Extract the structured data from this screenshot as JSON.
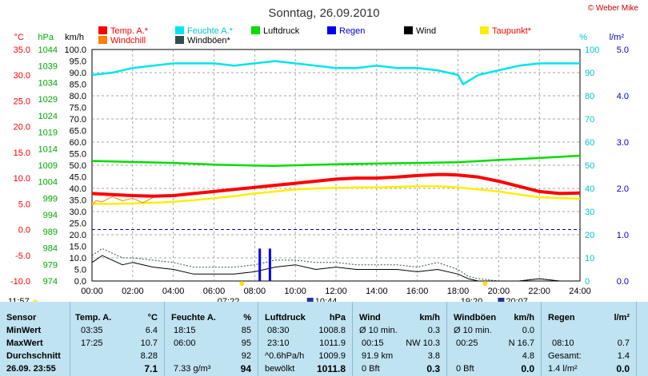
{
  "header": {
    "title": "Sonntag, 26.09.2010",
    "credit": "© Weber Mike"
  },
  "colors": {
    "temp": "#ff0000",
    "feuchte": "#00e5ee",
    "luftdruck": "#00dd00",
    "regen": "#0000ee",
    "wind": "#000000",
    "taupunkt": "#ffee00",
    "windchill": "#ff7f00",
    "windboeen": "#2f4f4f"
  },
  "chart_data": {
    "type": "line",
    "title": "Sonntag, 26.09.2010",
    "x_range": [
      "00:00",
      "24:00"
    ],
    "x_ticks": [
      "00:00",
      "02:00",
      "04:00",
      "06:00",
      "08:00",
      "10:00",
      "12:00",
      "14:00",
      "16:00",
      "18:00",
      "20:00",
      "22:00",
      "24:00"
    ],
    "axes": {
      "temp": {
        "label": "°C",
        "range": [
          -10,
          35
        ],
        "ticks": [
          "35.0",
          "30.0",
          "25.0",
          "20.0",
          "15.0",
          "10.0",
          "5.0",
          "0.0",
          "-5.0",
          "-10.0"
        ]
      },
      "hpa": {
        "label": "hPa",
        "range": [
          974,
          1044
        ],
        "ticks": [
          "1044",
          "1039",
          "1034",
          "1029",
          "1024",
          "1019",
          "1014",
          "1009",
          "1004",
          "999",
          "994",
          "989",
          "984",
          "979",
          "974"
        ]
      },
      "kmh": {
        "label": "km/h",
        "range": [
          0,
          100
        ],
        "ticks": [
          "100.0",
          "95.0",
          "90.0",
          "85.0",
          "80.0",
          "75.0",
          "70.0",
          "65.0",
          "60.0",
          "55.0",
          "50.0",
          "45.0",
          "40.0",
          "35.0",
          "30.0",
          "25.0",
          "20.0",
          "15.0",
          "10.0",
          "5.0",
          "0.0"
        ]
      },
      "pct": {
        "label": "%",
        "range": [
          0,
          100
        ],
        "ticks": [
          "100",
          "90",
          "80",
          "70",
          "60",
          "50",
          "40",
          "30",
          "20",
          "10",
          "0"
        ]
      },
      "rain": {
        "label": "l/m²",
        "range": [
          0,
          5
        ],
        "ticks": [
          "5.0",
          "4.0",
          "3.0",
          "2.0",
          "1.0",
          "0.0"
        ]
      }
    },
    "legend": [
      "Temp. A.*",
      "Feuchte A.*",
      "Luftdruck",
      "Regen",
      "Wind",
      "Taupunkt*",
      "Windchill",
      "Windböen*"
    ],
    "series": [
      {
        "name": "Temp. A.*",
        "axis": "temp",
        "x": [
          0,
          1,
          2,
          3,
          4,
          5,
          6,
          7,
          8,
          9,
          10,
          11,
          12,
          13,
          14,
          15,
          16,
          17,
          17.4,
          18,
          19,
          20,
          21,
          22,
          23,
          24
        ],
        "y": [
          7.0,
          6.8,
          6.6,
          6.5,
          6.6,
          7.0,
          7.4,
          7.8,
          8.2,
          8.6,
          9.0,
          9.4,
          9.8,
          10.0,
          10.0,
          10.2,
          10.5,
          10.7,
          10.7,
          10.6,
          10.2,
          9.4,
          8.4,
          7.4,
          7.0,
          7.1
        ]
      },
      {
        "name": "Feuchte A.*",
        "axis": "pct",
        "x": [
          0,
          1,
          2,
          3,
          4,
          5,
          6,
          7,
          8,
          9,
          10,
          11,
          12,
          13,
          14,
          15,
          16,
          17,
          18,
          18.25,
          19,
          20,
          21,
          22,
          23,
          24
        ],
        "y": [
          89,
          90,
          92,
          93,
          94,
          94,
          94,
          93,
          94,
          95,
          94,
          93,
          92,
          92,
          93,
          92,
          92,
          91,
          89,
          85,
          89,
          91,
          93,
          94,
          94,
          94
        ]
      },
      {
        "name": "Luftdruck",
        "axis": "hpa",
        "x": [
          0,
          2,
          4,
          6,
          8,
          9,
          10,
          12,
          14,
          16,
          18,
          20,
          22,
          24
        ],
        "y": [
          1010.3,
          1010.0,
          1009.7,
          1009.2,
          1008.9,
          1008.8,
          1009.0,
          1009.3,
          1009.5,
          1009.7,
          1009.9,
          1010.6,
          1011.2,
          1011.9
        ]
      },
      {
        "name": "Taupunkt*",
        "axis": "temp",
        "x": [
          0,
          1,
          2,
          3,
          4,
          5,
          6,
          7,
          8,
          9,
          10,
          11,
          12,
          13,
          14,
          15,
          16,
          17,
          18,
          19,
          20,
          21,
          22,
          23,
          24
        ],
        "y": [
          5.0,
          5.0,
          5.1,
          5.2,
          5.4,
          5.7,
          6.1,
          6.5,
          7.0,
          7.4,
          7.8,
          8.0,
          8.1,
          8.2,
          8.2,
          8.3,
          8.4,
          8.4,
          8.2,
          7.8,
          7.4,
          6.8,
          6.3,
          6.1,
          6.0
        ]
      },
      {
        "name": "Windchill",
        "axis": "temp",
        "x": [
          0,
          0.2,
          0.5,
          1,
          1.5,
          2,
          2.5,
          3
        ],
        "y": [
          4.8,
          5.6,
          5.4,
          6.4,
          5.6,
          6.1,
          5.2,
          6.2
        ]
      },
      {
        "name": "Wind",
        "axis": "kmh",
        "x": [
          0,
          0.5,
          1,
          1.5,
          2,
          3,
          4,
          5,
          6,
          7,
          8,
          9,
          10,
          11,
          12,
          13,
          14,
          15,
          16,
          17,
          18,
          18.5,
          19,
          20,
          21,
          22,
          23,
          24
        ],
        "y": [
          8,
          11,
          9,
          7,
          8,
          6,
          5,
          3,
          3,
          3,
          4,
          6,
          7,
          5,
          6,
          5,
          5,
          5,
          4,
          5,
          3,
          1,
          0,
          0,
          0,
          1,
          0,
          0
        ]
      },
      {
        "name": "Windböen*",
        "axis": "kmh",
        "x": [
          0,
          0.5,
          1,
          1.5,
          2,
          3,
          4,
          5,
          6,
          7,
          8,
          9,
          10,
          11,
          12,
          13,
          14,
          15,
          16,
          17,
          18,
          18.5,
          19,
          20,
          21,
          22,
          23,
          24
        ],
        "y": [
          11,
          14,
          12,
          10,
          10,
          9,
          8,
          6,
          6,
          6,
          7,
          9,
          9,
          8,
          8,
          7,
          7,
          7,
          6,
          8,
          5,
          2,
          1,
          0,
          0,
          1,
          0,
          0
        ]
      },
      {
        "name": "Regen",
        "axis": "rain",
        "bars": [
          {
            "x": 8.25,
            "y": 0.7
          },
          {
            "x": 8.75,
            "y": 0.7
          }
        ]
      }
    ],
    "sun_markers": [
      {
        "label": "07:22",
        "x": 7.37
      },
      {
        "label": "19:20",
        "x": 19.33
      }
    ],
    "moon_markers": [
      {
        "label": "10:44",
        "x": 10.73
      },
      {
        "label": "20:07",
        "x": 20.12
      }
    ],
    "footer_time": "11:57",
    "grid": true
  },
  "table": {
    "sensor": {
      "header": "Sensor",
      "rows": [
        "MinWert",
        "MaxWert",
        "Durchschnitt",
        "26.09. 23:55"
      ]
    },
    "temp": {
      "header": "Temp. A.",
      "unit": "°C",
      "times": [
        "03:35",
        "17:25",
        "",
        ""
      ],
      "values": [
        "6.4",
        "10.7",
        "8.28",
        "7.1"
      ]
    },
    "feuchte": {
      "header": "Feuchte A.",
      "unit": "%",
      "times": [
        "18:15",
        "06:00",
        "",
        "7.33 g/m³"
      ],
      "values": [
        "85",
        "95",
        "92",
        "94"
      ]
    },
    "luftdruck": {
      "header": "Luftdruck",
      "unit": "hPa",
      "times": [
        "08:30",
        "23:10",
        "^0.6hPa/h",
        "bewölkt"
      ],
      "values": [
        "1008.8",
        "1011.9",
        "1009.9",
        "1011.8"
      ]
    },
    "wind": {
      "header": "Wind",
      "unit": "km/h",
      "labels": [
        "Ø 10 min.",
        "00:15",
        "91.9 km",
        "0 Bft"
      ],
      "values": [
        "0.3",
        "NW 10.3",
        "3.8",
        "0.3"
      ]
    },
    "windboeen": {
      "header": "Windböen",
      "unit": "km/h",
      "labels": [
        "Ø 10 min.",
        "00:25",
        "",
        "0 Bft"
      ],
      "values": [
        "0.0",
        "N 16.7",
        "4.8",
        "0.0"
      ]
    },
    "regen": {
      "header": "Regen",
      "unit": "l/m²",
      "labels": [
        "",
        "08:10",
        "Gesamt:",
        "1.4 l/m²"
      ],
      "values": [
        "",
        "0.7",
        "1.4",
        "0.0"
      ]
    }
  }
}
